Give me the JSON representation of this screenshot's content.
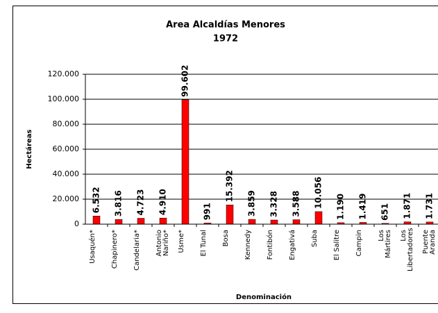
{
  "chart_data": {
    "type": "bar",
    "title": "Area Alcaldías Menores",
    "subtitle": "1972",
    "x_label": "Denominación",
    "y_label": "Hectáreas",
    "categories": [
      "Usaquén*",
      "Chapinero*",
      "Candelaria*",
      "Antonio Nariño*",
      "Usme*",
      "El Tunal",
      "Bosa",
      "Kennedy",
      "Fontibón",
      "Engativá",
      "Suba",
      "El Salitre",
      "Campin",
      "Los Mártires",
      "Los Libertadores",
      "Puente Aranda"
    ],
    "values": [
      6532,
      3816,
      4723,
      4910,
      99602,
      991,
      15392,
      3859,
      3328,
      3588,
      10056,
      1190,
      1419,
      651,
      1871,
      1731
    ],
    "value_labels": [
      "6.532",
      "3.816",
      "4.723",
      "4.910",
      "99.602",
      "991",
      "15.392",
      "3.859",
      "3.328",
      "3.588",
      "10.056",
      "1.190",
      "1.419",
      "651",
      "1.871",
      "1.731"
    ],
    "color": "#ff0000",
    "ylim": [
      0,
      120000
    ],
    "yticks": [
      0,
      {
        "value": 20000,
        "label": "20.000"
      },
      {
        "value": 40000,
        "label": "40.000"
      },
      {
        "value": 60000,
        "label": "60.000"
      },
      {
        "value": 80000,
        "label": "80.000"
      },
      {
        "value": 100000,
        "label": "100.000"
      },
      {
        "value": 120000,
        "label": "120.000"
      }
    ],
    "grid": true
  }
}
